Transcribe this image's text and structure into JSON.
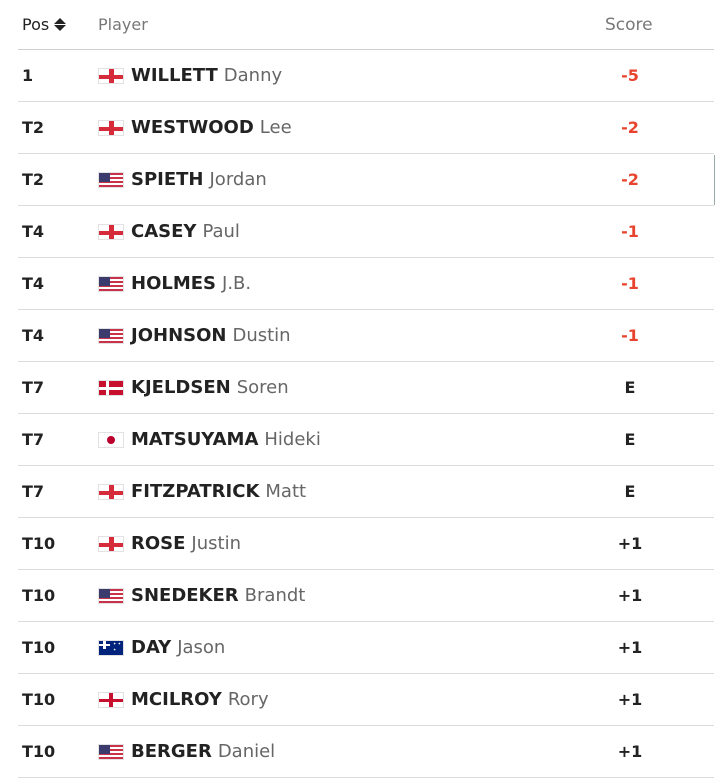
{
  "header": {
    "pos": "Pos",
    "player": "Player",
    "score": "Score"
  },
  "rows": [
    {
      "pos": "1",
      "flag": "england-flag-icon",
      "last": "WILLETT",
      "first": "Danny",
      "score": "-5",
      "status": "under"
    },
    {
      "pos": "T2",
      "flag": "england-flag-icon",
      "last": "WESTWOOD",
      "first": "Lee",
      "score": "-2",
      "status": "under"
    },
    {
      "pos": "T2",
      "flag": "usa-flag-icon",
      "last": "SPIETH",
      "first": "Jordan",
      "score": "-2",
      "status": "under"
    },
    {
      "pos": "T4",
      "flag": "england-flag-icon",
      "last": "CASEY",
      "first": "Paul",
      "score": "-1",
      "status": "under"
    },
    {
      "pos": "T4",
      "flag": "usa-flag-icon",
      "last": "HOLMES",
      "first": "J.B.",
      "score": "-1",
      "status": "under"
    },
    {
      "pos": "T4",
      "flag": "usa-flag-icon",
      "last": "JOHNSON",
      "first": "Dustin",
      "score": "-1",
      "status": "under"
    },
    {
      "pos": "T7",
      "flag": "denmark-flag-icon",
      "last": "KJELDSEN",
      "first": "Soren",
      "score": "E",
      "status": "even"
    },
    {
      "pos": "T7",
      "flag": "japan-flag-icon",
      "last": "MATSUYAMA",
      "first": "Hideki",
      "score": "E",
      "status": "even"
    },
    {
      "pos": "T7",
      "flag": "england-flag-icon",
      "last": "FITZPATRICK",
      "first": "Matt",
      "score": "E",
      "status": "even"
    },
    {
      "pos": "T10",
      "flag": "england-flag-icon",
      "last": "ROSE",
      "first": "Justin",
      "score": "+1",
      "status": "over"
    },
    {
      "pos": "T10",
      "flag": "usa-flag-icon",
      "last": "SNEDEKER",
      "first": "Brandt",
      "score": "+1",
      "status": "over"
    },
    {
      "pos": "T10",
      "flag": "australia-flag-icon",
      "last": "DAY",
      "first": "Jason",
      "score": "+1",
      "status": "over"
    },
    {
      "pos": "T10",
      "flag": "northern-ireland-flag-icon",
      "last": "MCILROY",
      "first": "Rory",
      "score": "+1",
      "status": "over"
    },
    {
      "pos": "T10",
      "flag": "usa-flag-icon",
      "last": "BERGER",
      "first": "Daniel",
      "score": "+1",
      "status": "over"
    }
  ],
  "colors": {
    "under_par": "#e8432e",
    "even_or_over": "#222222",
    "header_text": "#777777"
  }
}
